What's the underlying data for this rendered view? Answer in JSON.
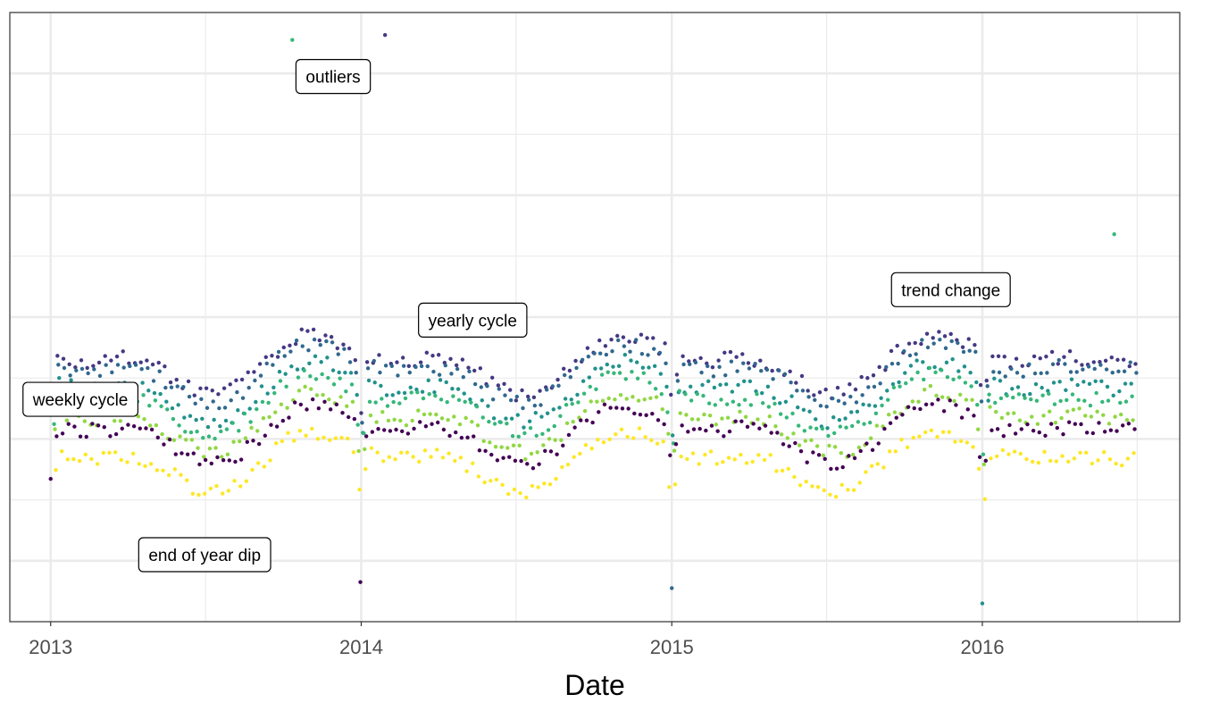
{
  "chart_data": {
    "type": "scatter",
    "title": "",
    "xlabel": "Date",
    "ylabel": "",
    "x_ticks": [
      "2013",
      "2014",
      "2015",
      "2016"
    ],
    "x_range": [
      "2012-11-14",
      "2016-08-20"
    ],
    "y_range": [
      0,
      100
    ],
    "y_gridlines_major": [
      10,
      30,
      50,
      70,
      90
    ],
    "y_gridlines_minor": [
      0,
      20,
      40,
      60,
      80,
      100
    ],
    "grid": true,
    "legend": "none",
    "palette": [
      "#440154",
      "#443983",
      "#31688e",
      "#21918c",
      "#35b779",
      "#90d743",
      "#fde725"
    ],
    "series_note_pattern": "one point per day colored by weekday",
    "annotations": [
      {
        "text": "outliers",
        "x": "2013-11-29",
        "y": 89.5
      },
      {
        "text": "yearly cycle",
        "x": "2014-05-12",
        "y": 49.5
      },
      {
        "text": "trend change",
        "x": "2015-11-25",
        "y": 54.5
      },
      {
        "text": "weekly cycle",
        "x": "2013-02-05",
        "y": 36.5
      },
      {
        "text": "end of year dip",
        "x": "2013-07-01",
        "y": 11.0
      }
    ],
    "key_points": [
      {
        "x": "2013-10-12",
        "y": 95.5
      },
      {
        "x": "2014-01-29",
        "y": 96.3
      },
      {
        "x": "2016-06-04",
        "y": 63.6
      },
      {
        "x": "2016-01-01",
        "y": 3.0
      },
      {
        "x": "2013-12-31",
        "y": 6.5
      },
      {
        "x": "2015-01-01",
        "y": 5.5
      }
    ]
  }
}
